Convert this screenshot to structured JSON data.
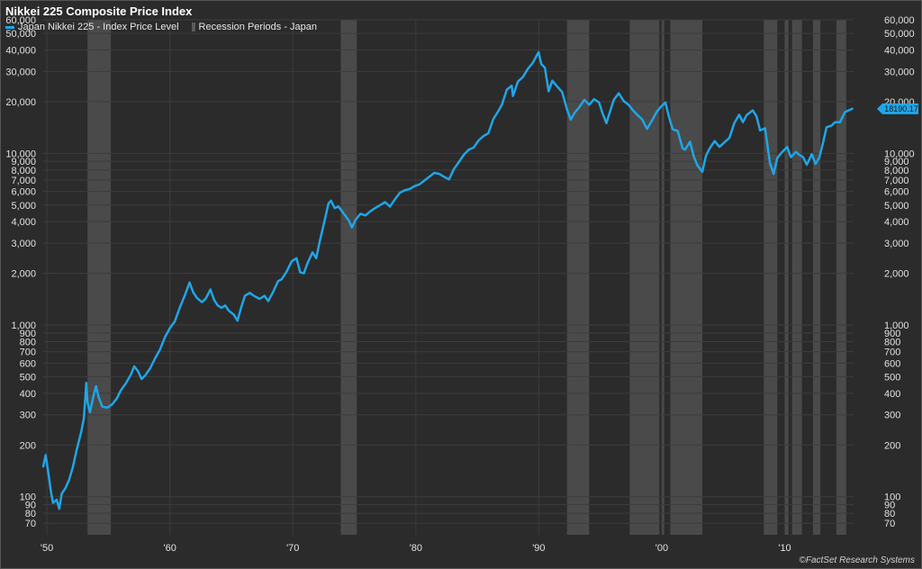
{
  "chart_data": {
    "type": "line",
    "title": "Nikkei 225 Composite Price Index",
    "xlabel": "",
    "ylabel": "",
    "scale": "log",
    "xlim": [
      1949.7,
      2015.6
    ],
    "ylim": [
      60,
      60000
    ],
    "x_ticks": [
      {
        "value": 1950,
        "label": "'50"
      },
      {
        "value": 1960,
        "label": "'60"
      },
      {
        "value": 1970,
        "label": "'70"
      },
      {
        "value": 1980,
        "label": "'80"
      },
      {
        "value": 1990,
        "label": "'90"
      },
      {
        "value": 2000,
        "label": "'00"
      },
      {
        "value": 2010,
        "label": "'10"
      }
    ],
    "y_ticks": [
      {
        "value": 70,
        "label": "70"
      },
      {
        "value": 80,
        "label": "80"
      },
      {
        "value": 90,
        "label": "90"
      },
      {
        "value": 100,
        "label": "100"
      },
      {
        "value": 200,
        "label": "200"
      },
      {
        "value": 300,
        "label": "300"
      },
      {
        "value": 400,
        "label": "400"
      },
      {
        "value": 500,
        "label": "500"
      },
      {
        "value": 600,
        "label": "600"
      },
      {
        "value": 700,
        "label": "700"
      },
      {
        "value": 800,
        "label": "800"
      },
      {
        "value": 900,
        "label": "900"
      },
      {
        "value": 1000,
        "label": "1,000"
      },
      {
        "value": 2000,
        "label": "2,000"
      },
      {
        "value": 3000,
        "label": "3,000"
      },
      {
        "value": 4000,
        "label": "4,000"
      },
      {
        "value": 5000,
        "label": "5,000"
      },
      {
        "value": 6000,
        "label": "6,000"
      },
      {
        "value": 7000,
        "label": "7,000"
      },
      {
        "value": 8000,
        "label": "8,000"
      },
      {
        "value": 9000,
        "label": "9,000"
      },
      {
        "value": 10000,
        "label": "10,000"
      },
      {
        "value": 20000,
        "label": "20,000"
      },
      {
        "value": 30000,
        "label": "30,000"
      },
      {
        "value": 40000,
        "label": "40,000"
      },
      {
        "value": 50000,
        "label": "50,000"
      },
      {
        "value": 60000,
        "label": "60,000"
      }
    ],
    "grid": true,
    "legend_position": "top-left",
    "series": [
      {
        "name": "Japan Nikkei 225 - Index Price Level",
        "color": "#1fa6e8",
        "points": [
          [
            1949.7,
            150
          ],
          [
            1949.9,
            175
          ],
          [
            1950.1,
            140
          ],
          [
            1950.3,
            110
          ],
          [
            1950.5,
            92
          ],
          [
            1950.8,
            96
          ],
          [
            1951.0,
            85
          ],
          [
            1951.2,
            104
          ],
          [
            1951.5,
            112
          ],
          [
            1951.8,
            125
          ],
          [
            1952.1,
            148
          ],
          [
            1952.4,
            185
          ],
          [
            1952.8,
            240
          ],
          [
            1953.0,
            285
          ],
          [
            1953.15,
            400
          ],
          [
            1953.2,
            460
          ],
          [
            1953.3,
            355
          ],
          [
            1953.5,
            310
          ],
          [
            1953.8,
            390
          ],
          [
            1954.0,
            440
          ],
          [
            1954.2,
            380
          ],
          [
            1954.5,
            335
          ],
          [
            1954.9,
            330
          ],
          [
            1955.3,
            345
          ],
          [
            1955.7,
            375
          ],
          [
            1956.0,
            415
          ],
          [
            1956.4,
            455
          ],
          [
            1956.8,
            510
          ],
          [
            1957.1,
            575
          ],
          [
            1957.4,
            540
          ],
          [
            1957.7,
            485
          ],
          [
            1958.0,
            510
          ],
          [
            1958.4,
            560
          ],
          [
            1958.8,
            640
          ],
          [
            1959.2,
            720
          ],
          [
            1959.6,
            850
          ],
          [
            1960.0,
            960
          ],
          [
            1960.4,
            1050
          ],
          [
            1960.8,
            1260
          ],
          [
            1961.2,
            1480
          ],
          [
            1961.6,
            1770
          ],
          [
            1961.9,
            1550
          ],
          [
            1962.2,
            1440
          ],
          [
            1962.6,
            1360
          ],
          [
            1962.9,
            1420
          ],
          [
            1963.3,
            1610
          ],
          [
            1963.6,
            1400
          ],
          [
            1963.9,
            1300
          ],
          [
            1964.2,
            1260
          ],
          [
            1964.5,
            1300
          ],
          [
            1964.8,
            1210
          ],
          [
            1965.2,
            1150
          ],
          [
            1965.5,
            1060
          ],
          [
            1965.8,
            1270
          ],
          [
            1966.1,
            1480
          ],
          [
            1966.5,
            1540
          ],
          [
            1966.9,
            1470
          ],
          [
            1967.3,
            1420
          ],
          [
            1967.7,
            1480
          ],
          [
            1968.0,
            1380
          ],
          [
            1968.4,
            1560
          ],
          [
            1968.8,
            1800
          ],
          [
            1969.1,
            1850
          ],
          [
            1969.5,
            2050
          ],
          [
            1969.9,
            2350
          ],
          [
            1970.3,
            2450
          ],
          [
            1970.6,
            2030
          ],
          [
            1970.9,
            2000
          ],
          [
            1971.2,
            2300
          ],
          [
            1971.6,
            2650
          ],
          [
            1971.9,
            2450
          ],
          [
            1972.2,
            3100
          ],
          [
            1972.6,
            4100
          ],
          [
            1972.9,
            5100
          ],
          [
            1973.1,
            5300
          ],
          [
            1973.4,
            4800
          ],
          [
            1973.7,
            4900
          ],
          [
            1974.0,
            4600
          ],
          [
            1974.3,
            4300
          ],
          [
            1974.6,
            4000
          ],
          [
            1974.8,
            3700
          ],
          [
            1975.1,
            4100
          ],
          [
            1975.5,
            4450
          ],
          [
            1975.9,
            4350
          ],
          [
            1976.3,
            4600
          ],
          [
            1976.7,
            4800
          ],
          [
            1977.1,
            5000
          ],
          [
            1977.5,
            5200
          ],
          [
            1977.9,
            4900
          ],
          [
            1978.3,
            5400
          ],
          [
            1978.7,
            5900
          ],
          [
            1979.1,
            6100
          ],
          [
            1979.5,
            6200
          ],
          [
            1979.9,
            6450
          ],
          [
            1980.3,
            6600
          ],
          [
            1980.7,
            6950
          ],
          [
            1981.1,
            7300
          ],
          [
            1981.5,
            7700
          ],
          [
            1981.9,
            7600
          ],
          [
            1982.3,
            7300
          ],
          [
            1982.7,
            7050
          ],
          [
            1983.1,
            8100
          ],
          [
            1983.5,
            8900
          ],
          [
            1983.9,
            9800
          ],
          [
            1984.3,
            10500
          ],
          [
            1984.7,
            10800
          ],
          [
            1985.1,
            11900
          ],
          [
            1985.5,
            12600
          ],
          [
            1985.9,
            13100
          ],
          [
            1986.3,
            15800
          ],
          [
            1986.7,
            17600
          ],
          [
            1987.0,
            19200
          ],
          [
            1987.4,
            23500
          ],
          [
            1987.8,
            24800
          ],
          [
            1987.9,
            21600
          ],
          [
            1988.3,
            26200
          ],
          [
            1988.7,
            27800
          ],
          [
            1989.1,
            31000
          ],
          [
            1989.5,
            33600
          ],
          [
            1989.99,
            38900
          ],
          [
            1990.2,
            33200
          ],
          [
            1990.5,
            31500
          ],
          [
            1990.8,
            23000
          ],
          [
            1991.1,
            26500
          ],
          [
            1991.5,
            24500
          ],
          [
            1991.9,
            22800
          ],
          [
            1992.3,
            18000
          ],
          [
            1992.6,
            15700
          ],
          [
            1992.9,
            17200
          ],
          [
            1993.3,
            18600
          ],
          [
            1993.7,
            20500
          ],
          [
            1994.1,
            19200
          ],
          [
            1994.5,
            20700
          ],
          [
            1994.9,
            19800
          ],
          [
            1995.2,
            17000
          ],
          [
            1995.5,
            15000
          ],
          [
            1995.8,
            17600
          ],
          [
            1996.1,
            20500
          ],
          [
            1996.5,
            22400
          ],
          [
            1996.9,
            20200
          ],
          [
            1997.3,
            19200
          ],
          [
            1997.7,
            17700
          ],
          [
            1998.0,
            16800
          ],
          [
            1998.4,
            15800
          ],
          [
            1998.8,
            13900
          ],
          [
            1999.2,
            15500
          ],
          [
            1999.6,
            17500
          ],
          [
            2000.0,
            18900
          ],
          [
            2000.3,
            19800
          ],
          [
            2000.6,
            16200
          ],
          [
            2000.9,
            13800
          ],
          [
            2001.3,
            13500
          ],
          [
            2001.7,
            10700
          ],
          [
            2001.9,
            10500
          ],
          [
            2002.3,
            11700
          ],
          [
            2002.6,
            9600
          ],
          [
            2002.9,
            8500
          ],
          [
            2003.3,
            7800
          ],
          [
            2003.6,
            9700
          ],
          [
            2003.9,
            10700
          ],
          [
            2004.3,
            11800
          ],
          [
            2004.7,
            10900
          ],
          [
            2005.1,
            11600
          ],
          [
            2005.5,
            12300
          ],
          [
            2005.9,
            15000
          ],
          [
            2006.3,
            16800
          ],
          [
            2006.6,
            15200
          ],
          [
            2006.9,
            16700
          ],
          [
            2007.4,
            17800
          ],
          [
            2007.7,
            16500
          ],
          [
            2008.0,
            13600
          ],
          [
            2008.4,
            14000
          ],
          [
            2008.8,
            8800
          ],
          [
            2009.1,
            7600
          ],
          [
            2009.4,
            9400
          ],
          [
            2009.8,
            10200
          ],
          [
            2010.2,
            10900
          ],
          [
            2010.5,
            9500
          ],
          [
            2010.9,
            10200
          ],
          [
            2011.2,
            9800
          ],
          [
            2011.5,
            9500
          ],
          [
            2011.8,
            8600
          ],
          [
            2012.2,
            9900
          ],
          [
            2012.5,
            8700
          ],
          [
            2012.8,
            9400
          ],
          [
            2013.1,
            11400
          ],
          [
            2013.4,
            14200
          ],
          [
            2013.8,
            14500
          ],
          [
            2014.1,
            15200
          ],
          [
            2014.5,
            15200
          ],
          [
            2014.9,
            17400
          ],
          [
            2015.2,
            17800
          ],
          [
            2015.5,
            18190
          ]
        ]
      },
      {
        "name": "Recession Periods - Japan",
        "color": "#4a4a4a",
        "periods": [
          [
            1953.3,
            1955.2
          ],
          [
            1973.9,
            1975.2
          ],
          [
            1992.3,
            1994.1
          ],
          [
            1997.4,
            1999.8
          ],
          [
            2000.0,
            2000.2
          ],
          [
            2000.7,
            2003.3
          ],
          [
            2008.3,
            2009.4
          ],
          [
            2010.0,
            2010.3
          ],
          [
            2010.6,
            2011.4
          ],
          [
            2012.3,
            2012.9
          ],
          [
            2014.2,
            2015.0
          ]
        ]
      }
    ],
    "last_value_label": "18190.17"
  },
  "credit": "©FactSet Research Systems"
}
